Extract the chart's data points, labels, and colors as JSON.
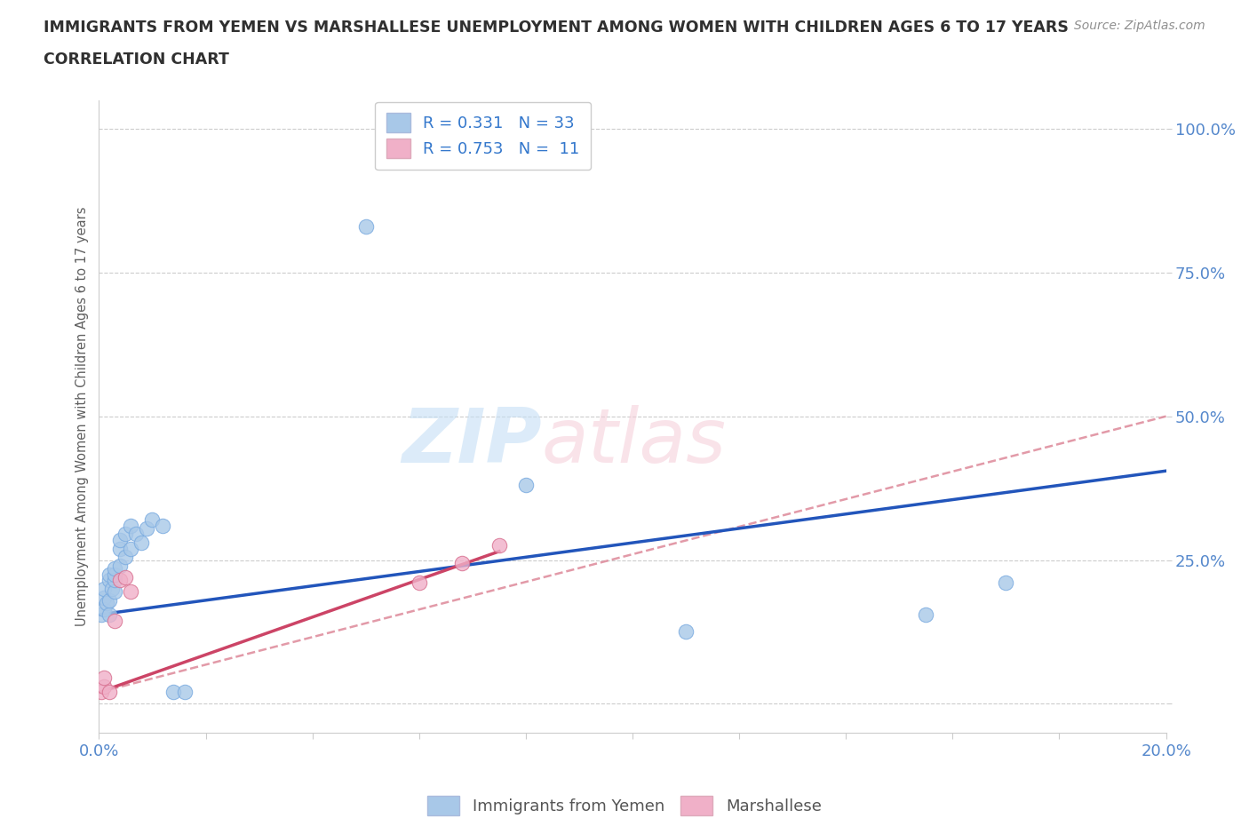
{
  "title_line1": "IMMIGRANTS FROM YEMEN VS MARSHALLESE UNEMPLOYMENT AMONG WOMEN WITH CHILDREN AGES 6 TO 17 YEARS",
  "title_line2": "CORRELATION CHART",
  "source": "Source: ZipAtlas.com",
  "ylabel": "Unemployment Among Women with Children Ages 6 to 17 years",
  "xlim": [
    0.0,
    0.2
  ],
  "ylim": [
    -0.05,
    1.05
  ],
  "series1_color": "#a8c8e8",
  "series1_edge": "#7aabe0",
  "series2_color": "#f0b0c8",
  "series2_edge": "#d87090",
  "line1_color": "#2255bb",
  "line2_solid_color": "#cc4466",
  "line2_dash_color": "#dd8899",
  "grid_color": "#cccccc",
  "title_color": "#303030",
  "tick_label_color": "#5588cc",
  "ylabel_color": "#606060",
  "background_color": "#ffffff",
  "legend_r1_text": "R = 0.331   N = 33",
  "legend_r2_text": "R = 0.753   N =  11",
  "legend_bottom_1": "Immigrants from Yemen",
  "legend_bottom_2": "Marshallese",
  "yemen_x": [
    0.0005,
    0.001,
    0.001,
    0.001,
    0.0015,
    0.002,
    0.002,
    0.002,
    0.002,
    0.0025,
    0.003,
    0.003,
    0.003,
    0.003,
    0.004,
    0.004,
    0.004,
    0.005,
    0.005,
    0.006,
    0.006,
    0.007,
    0.008,
    0.009,
    0.01,
    0.012,
    0.014,
    0.016,
    0.05,
    0.08,
    0.11,
    0.155,
    0.17
  ],
  "yemen_y": [
    0.155,
    0.165,
    0.185,
    0.2,
    0.175,
    0.155,
    0.18,
    0.215,
    0.225,
    0.2,
    0.195,
    0.215,
    0.225,
    0.235,
    0.24,
    0.27,
    0.285,
    0.255,
    0.295,
    0.27,
    0.31,
    0.295,
    0.28,
    0.305,
    0.32,
    0.31,
    0.02,
    0.02,
    0.83,
    0.38,
    0.125,
    0.155,
    0.21
  ],
  "marsh_x": [
    0.0005,
    0.001,
    0.001,
    0.002,
    0.003,
    0.004,
    0.005,
    0.006,
    0.06,
    0.068,
    0.075
  ],
  "marsh_y": [
    0.02,
    0.03,
    0.045,
    0.02,
    0.145,
    0.215,
    0.22,
    0.195,
    0.21,
    0.245,
    0.275
  ],
  "line1_x0": 0.0,
  "line1_y0": 0.155,
  "line1_x1": 0.2,
  "line1_y1": 0.405,
  "line2_solid_x0": 0.0,
  "line2_solid_y0": 0.02,
  "line2_solid_x1": 0.075,
  "line2_solid_y1": 0.265,
  "line2_dash_x0": 0.0,
  "line2_dash_y0": 0.02,
  "line2_dash_x1": 0.2,
  "line2_dash_y1": 0.5,
  "ytick_positions": [
    0.0,
    0.25,
    0.5,
    0.75,
    1.0
  ],
  "ytick_labels": [
    "",
    "25.0%",
    "50.0%",
    "75.0%",
    "100.0%"
  ],
  "xtick_positions": [
    0.0,
    0.02,
    0.04,
    0.06,
    0.08,
    0.1,
    0.12,
    0.14,
    0.16,
    0.18,
    0.2
  ]
}
